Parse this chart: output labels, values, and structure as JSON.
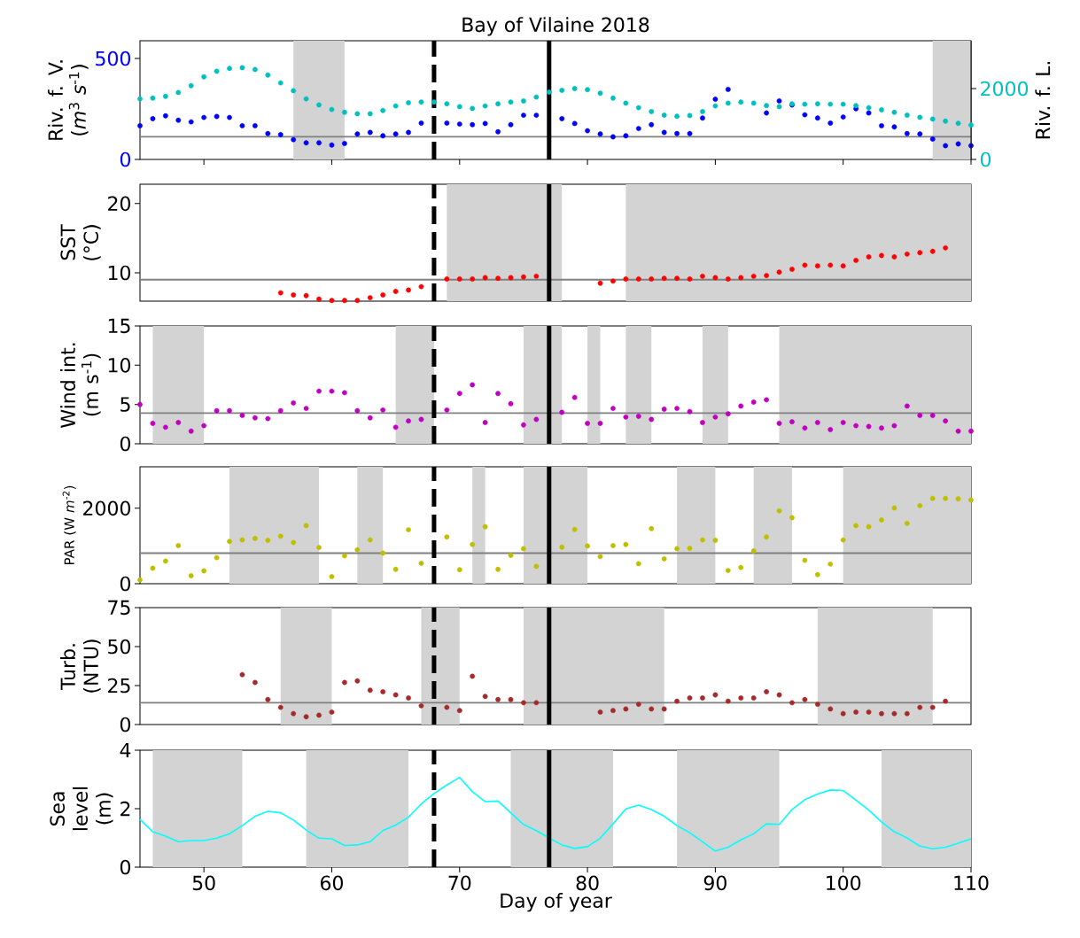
{
  "chart_data": [
    {
      "type": "scatter",
      "title": "Bay of Vilaine 2018",
      "ylabel": "Riv. f. V. (*m*$^{3}$ *s*$^{-1}$)",
      "y2label": "Riv. f. L.",
      "marker": "circle",
      "tick_labels": "y",
      "x": [
        45,
        46,
        47,
        48,
        49,
        50,
        51,
        52,
        53,
        54,
        55,
        56,
        57,
        58,
        59,
        60,
        61,
        62,
        63,
        64,
        65,
        66,
        67,
        68,
        69,
        70,
        71,
        72,
        73,
        74,
        75,
        76,
        77,
        78,
        79,
        80,
        81,
        82,
        83,
        84,
        85,
        86,
        87,
        88,
        89,
        90,
        91,
        92,
        93,
        94,
        95,
        96,
        97,
        98,
        99,
        100,
        101,
        102,
        103,
        104,
        105,
        106,
        107,
        108,
        109,
        110
      ],
      "series": [
        {
          "color": "#0000ff",
          "axis": "y",
          "values": [
            167,
            202,
            216,
            194,
            186,
            208,
            213,
            208,
            167,
            167,
            128,
            123,
            98,
            82,
            82,
            71,
            79,
            126,
            134,
            117,
            126,
            134,
            180,
            null,
            180,
            175,
            172,
            178,
            137,
            172,
            219,
            219,
            null,
            202,
            178,
            142,
            126,
            112,
            117,
            153,
            172,
            134,
            128,
            128,
            205,
            298,
            347,
            null,
            null,
            230,
            290,
            270,
            221,
            205,
            180,
            210,
            251,
            230,
            167,
            161,
            128,
            126,
            101,
            68,
            77,
            68
          ]
        },
        {
          "color": "#00bfbf",
          "axis": "y2",
          "values": [
            1710,
            1730,
            1780,
            1890,
            2080,
            2330,
            2490,
            2570,
            2590,
            2540,
            2380,
            2160,
            1940,
            1710,
            1540,
            1410,
            1330,
            1290,
            1290,
            1380,
            1510,
            1600,
            1620,
            1620,
            1570,
            1490,
            1440,
            1510,
            1570,
            1620,
            1650,
            1760,
            1900,
            1950,
            2000,
            1970,
            1870,
            1730,
            1590,
            1460,
            1350,
            1250,
            1220,
            1240,
            1350,
            1510,
            1590,
            1620,
            1590,
            1520,
            1490,
            1570,
            1560,
            1570,
            1560,
            1560,
            1520,
            1460,
            1400,
            1330,
            1250,
            1190,
            1140,
            1080,
            1020,
            970
          ]
        }
      ],
      "xlim": [
        45,
        110
      ],
      "xticks": [
        50,
        60,
        70,
        80,
        90,
        100,
        110
      ],
      "ylim": [
        0,
        588
      ],
      "yticks": [
        0,
        500
      ],
      "y2lim": [
        0,
        3350
      ],
      "y2ticks": [
        0,
        2000
      ],
      "ref_lines": [
        {
          "axis": "y",
          "value": 112,
          "color": "#808080"
        },
        {
          "axis": "x",
          "value": 68,
          "color": "#000000",
          "line_style": "dashed"
        },
        {
          "axis": "x",
          "value": 77,
          "color": "#000000",
          "line_style": "solid"
        }
      ],
      "bands": [
        {
          "axis": "x",
          "from": 57,
          "to": 61,
          "color": "#d3d3d3"
        },
        {
          "axis": "x",
          "from": 107,
          "to": 110,
          "color": "#d3d3d3"
        }
      ]
    },
    {
      "type": "scatter",
      "ylabel": "SST (°C)",
      "marker": "circle",
      "tick_labels": "y",
      "x": [
        56,
        57,
        58,
        59,
        60,
        61,
        62,
        63,
        64,
        65,
        66,
        67,
        68,
        69,
        70,
        71,
        72,
        73,
        74,
        75,
        76,
        77,
        78,
        79,
        80,
        81,
        82,
        83,
        84,
        85,
        86,
        87,
        88,
        89,
        90,
        91,
        92,
        93,
        94,
        95,
        96,
        97,
        98,
        99,
        100,
        101,
        102,
        103,
        104,
        105,
        106,
        107,
        108
      ],
      "series": [
        {
          "color": "#ff0000",
          "values": [
            7.1,
            6.8,
            6.7,
            6.2,
            6.0,
            6.0,
            6.0,
            6.4,
            6.8,
            7.3,
            7.5,
            8.0,
            null,
            9.1,
            9.1,
            9.1,
            9.3,
            9.2,
            9.3,
            9.4,
            9.5,
            null,
            null,
            null,
            null,
            8.5,
            8.8,
            9.1,
            9.1,
            9.1,
            9.2,
            9.2,
            9.1,
            9.5,
            9.3,
            9.1,
            9.3,
            9.5,
            9.6,
            10.1,
            10.5,
            11.1,
            11.0,
            11.1,
            11.0,
            11.8,
            12.3,
            12.5,
            12.3,
            12.7,
            12.9,
            13.1,
            13.6
          ]
        }
      ],
      "xlim": [
        45,
        110
      ],
      "ylim": [
        5.9,
        22.8
      ],
      "yticks": [
        10,
        20
      ],
      "ref_lines": [
        {
          "axis": "y",
          "value": 9.0,
          "color": "#808080"
        },
        {
          "axis": "x",
          "value": 68,
          "color": "#000000",
          "line_style": "dashed"
        },
        {
          "axis": "x",
          "value": 77,
          "color": "#000000",
          "line_style": "solid"
        }
      ],
      "bands": [
        {
          "axis": "x",
          "from": 69,
          "to": 78,
          "color": "#d3d3d3"
        },
        {
          "axis": "x",
          "from": 83,
          "to": 110,
          "color": "#d3d3d3"
        }
      ]
    },
    {
      "type": "scatter",
      "ylabel": "Wind int. (m s$^{-1}$)",
      "marker": "circle",
      "tick_labels": "y",
      "x": [
        45,
        46,
        47,
        48,
        49,
        50,
        51,
        52,
        53,
        54,
        55,
        56,
        57,
        58,
        59,
        60,
        61,
        62,
        63,
        64,
        65,
        66,
        67,
        68,
        69,
        70,
        71,
        72,
        73,
        74,
        75,
        76,
        77,
        78,
        79,
        80,
        81,
        82,
        83,
        84,
        85,
        86,
        87,
        88,
        89,
        90,
        91,
        92,
        93,
        94,
        95,
        96,
        97,
        98,
        99,
        100,
        101,
        102,
        103,
        104,
        105,
        106,
        107,
        108,
        109,
        110
      ],
      "series": [
        {
          "color": "#bf00bf",
          "values": [
            5.0,
            2.6,
            2.1,
            2.7,
            1.6,
            2.3,
            4.2,
            4.2,
            3.6,
            3.3,
            3.2,
            4.2,
            5.2,
            4.5,
            6.7,
            6.7,
            6.5,
            4.2,
            3.3,
            4.3,
            2.1,
            2.9,
            3.1,
            null,
            4.3,
            6.4,
            7.5,
            2.7,
            6.4,
            5.1,
            2.4,
            3.1,
            null,
            4.0,
            5.9,
            2.6,
            2.6,
            4.5,
            3.4,
            3.5,
            3.1,
            4.4,
            4.5,
            4.1,
            2.7,
            3.4,
            3.8,
            4.8,
            5.3,
            5.6,
            2.6,
            2.8,
            2.0,
            2.7,
            1.8,
            2.7,
            2.3,
            2.2,
            2.0,
            2.3,
            4.8,
            3.6,
            3.6,
            2.9,
            1.6,
            1.6
          ]
        }
      ],
      "xlim": [
        45,
        110
      ],
      "ylim": [
        0,
        15
      ],
      "yticks": [
        0,
        5,
        10,
        15
      ],
      "ref_lines": [
        {
          "axis": "y",
          "value": 3.9,
          "color": "#808080"
        },
        {
          "axis": "x",
          "value": 68,
          "color": "#000000",
          "line_style": "dashed"
        },
        {
          "axis": "x",
          "value": 77,
          "color": "#000000",
          "line_style": "solid"
        }
      ],
      "bands": [
        {
          "axis": "x",
          "from": 46,
          "to": 50,
          "color": "#d3d3d3"
        },
        {
          "axis": "x",
          "from": 65,
          "to": 68,
          "color": "#d3d3d3"
        },
        {
          "axis": "x",
          "from": 75,
          "to": 78,
          "color": "#d3d3d3"
        },
        {
          "axis": "x",
          "from": 80,
          "to": 81,
          "color": "#d3d3d3"
        },
        {
          "axis": "x",
          "from": 83,
          "to": 85,
          "color": "#d3d3d3"
        },
        {
          "axis": "x",
          "from": 89,
          "to": 91,
          "color": "#d3d3d3"
        },
        {
          "axis": "x",
          "from": 95,
          "to": 110,
          "color": "#d3d3d3"
        }
      ]
    },
    {
      "type": "scatter",
      "ylabel": "PAR (W *m*$^{-2}$)",
      "marker": "circle",
      "tick_labels": "y",
      "x": [
        45,
        46,
        47,
        48,
        49,
        50,
        51,
        52,
        53,
        54,
        55,
        56,
        57,
        58,
        59,
        60,
        61,
        62,
        63,
        64,
        65,
        66,
        67,
        68,
        69,
        70,
        71,
        72,
        73,
        74,
        75,
        76,
        77,
        78,
        79,
        80,
        81,
        82,
        83,
        84,
        85,
        86,
        87,
        88,
        89,
        90,
        91,
        92,
        93,
        94,
        95,
        96,
        97,
        98,
        99,
        100,
        101,
        102,
        103,
        104,
        105,
        106,
        107,
        108,
        109,
        110
      ],
      "series": [
        {
          "color": "#bfbf00",
          "values": [
            100,
            410,
            600,
            1010,
            210,
            340,
            690,
            1120,
            1160,
            1200,
            1150,
            1260,
            1090,
            1540,
            960,
            190,
            740,
            900,
            1160,
            810,
            380,
            1430,
            540,
            null,
            1240,
            370,
            1040,
            1510,
            380,
            750,
            930,
            460,
            null,
            970,
            1440,
            1000,
            720,
            1010,
            1040,
            530,
            1460,
            660,
            930,
            940,
            1160,
            1150,
            350,
            430,
            870,
            1240,
            1930,
            1750,
            620,
            240,
            520,
            1160,
            1540,
            1510,
            1690,
            2010,
            1600,
            2070,
            2260,
            2260,
            2250,
            2220
          ]
        }
      ],
      "xlim": [
        45,
        110
      ],
      "ylim": [
        0,
        3100
      ],
      "yticks": [
        0,
        2000
      ],
      "ref_lines": [
        {
          "axis": "y",
          "value": 810,
          "color": "#808080"
        },
        {
          "axis": "x",
          "value": 68,
          "color": "#000000",
          "line_style": "dashed"
        },
        {
          "axis": "x",
          "value": 77,
          "color": "#000000",
          "line_style": "solid"
        }
      ],
      "bands": [
        {
          "axis": "x",
          "from": 52,
          "to": 59,
          "color": "#d3d3d3"
        },
        {
          "axis": "x",
          "from": 62,
          "to": 64,
          "color": "#d3d3d3"
        },
        {
          "axis": "x",
          "from": 71,
          "to": 72,
          "color": "#d3d3d3"
        },
        {
          "axis": "x",
          "from": 75,
          "to": 80,
          "color": "#d3d3d3"
        },
        {
          "axis": "x",
          "from": 87,
          "to": 90,
          "color": "#d3d3d3"
        },
        {
          "axis": "x",
          "from": 93,
          "to": 96,
          "color": "#d3d3d3"
        },
        {
          "axis": "x",
          "from": 100,
          "to": 110,
          "color": "#d3d3d3"
        }
      ]
    },
    {
      "type": "scatter",
      "ylabel": "Turb. (NTU)",
      "marker": "circle",
      "tick_labels": "y",
      "x": [
        53,
        54,
        55,
        56,
        57,
        58,
        59,
        60,
        61,
        62,
        63,
        64,
        65,
        66,
        67,
        68,
        69,
        70,
        71,
        72,
        73,
        74,
        75,
        76,
        77,
        78,
        79,
        80,
        81,
        82,
        83,
        84,
        85,
        86,
        87,
        88,
        89,
        90,
        91,
        92,
        93,
        94,
        95,
        96,
        97,
        98,
        99,
        100,
        101,
        102,
        103,
        104,
        105,
        106,
        107,
        108
      ],
      "series": [
        {
          "color": "#a52a2a",
          "values": [
            32,
            27,
            16,
            11,
            7,
            5,
            6,
            8,
            27,
            28,
            22,
            21,
            19,
            17,
            12,
            null,
            11,
            9,
            31,
            18,
            16,
            16,
            14,
            14,
            null,
            null,
            null,
            null,
            8,
            9,
            10,
            13,
            10,
            10,
            15,
            17,
            17,
            19,
            15,
            17,
            17,
            21,
            19,
            14,
            16,
            13,
            10,
            7,
            8,
            8,
            7,
            7,
            7,
            11,
            11,
            15
          ]
        }
      ],
      "xlim": [
        45,
        110
      ],
      "ylim": [
        0,
        75
      ],
      "yticks": [
        0,
        25,
        50,
        75
      ],
      "ref_lines": [
        {
          "axis": "y",
          "value": 14,
          "color": "#808080"
        },
        {
          "axis": "x",
          "value": 68,
          "color": "#000000",
          "line_style": "dashed"
        },
        {
          "axis": "x",
          "value": 77,
          "color": "#000000",
          "line_style": "solid"
        }
      ],
      "bands": [
        {
          "axis": "x",
          "from": 56,
          "to": 60,
          "color": "#d3d3d3"
        },
        {
          "axis": "x",
          "from": 67,
          "to": 70,
          "color": "#d3d3d3"
        },
        {
          "axis": "x",
          "from": 75,
          "to": 86,
          "color": "#d3d3d3"
        },
        {
          "axis": "x",
          "from": 98,
          "to": 107,
          "color": "#d3d3d3"
        }
      ]
    },
    {
      "type": "line",
      "ylabel": "Sea level (m)",
      "xlabel": "Day of year",
      "x": [
        45,
        46,
        47,
        48,
        49,
        50,
        51,
        52,
        53,
        54,
        55,
        56,
        57,
        58,
        59,
        60,
        61,
        62,
        63,
        64,
        65,
        66,
        67,
        68,
        69,
        70,
        71,
        72,
        73,
        74,
        75,
        76,
        77,
        78,
        79,
        80,
        81,
        82,
        83,
        84,
        85,
        86,
        87,
        88,
        89,
        90,
        91,
        92,
        93,
        94,
        95,
        96,
        97,
        98,
        99,
        100,
        101,
        102,
        103,
        104,
        105,
        106,
        107,
        108,
        109,
        110
      ],
      "series": [
        {
          "color": "#00ffff",
          "values": [
            1.63,
            1.21,
            1.06,
            0.87,
            0.91,
            0.91,
            0.99,
            1.14,
            1.42,
            1.74,
            1.91,
            1.86,
            1.61,
            1.27,
            0.99,
            0.97,
            0.74,
            0.76,
            0.87,
            1.25,
            1.44,
            1.71,
            2.16,
            2.52,
            2.81,
            3.07,
            2.58,
            2.24,
            2.26,
            1.86,
            1.46,
            1.25,
            1.0,
            0.76,
            0.64,
            0.7,
            0.99,
            1.48,
            1.99,
            2.12,
            1.97,
            1.74,
            1.42,
            1.18,
            0.87,
            0.55,
            0.68,
            0.93,
            1.14,
            1.48,
            1.46,
            1.97,
            2.31,
            2.5,
            2.64,
            2.62,
            2.29,
            1.95,
            1.55,
            1.21,
            1.0,
            0.72,
            0.63,
            0.68,
            0.82,
            0.97
          ]
        }
      ],
      "xlim": [
        45,
        110
      ],
      "xticks": [
        50,
        60,
        70,
        80,
        90,
        100,
        110
      ],
      "ylim": [
        0,
        4
      ],
      "yticks": [
        0,
        2,
        4
      ],
      "ref_lines": [
        {
          "axis": "x",
          "value": 68,
          "color": "#000000",
          "line_style": "dashed"
        },
        {
          "axis": "x",
          "value": 77,
          "color": "#000000",
          "line_style": "solid"
        }
      ],
      "bands": [
        {
          "axis": "x",
          "from": 46,
          "to": 53,
          "color": "#d3d3d3"
        },
        {
          "axis": "x",
          "from": 58,
          "to": 66,
          "color": "#d3d3d3"
        },
        {
          "axis": "x",
          "from": 74,
          "to": 82,
          "color": "#d3d3d3"
        },
        {
          "axis": "x",
          "from": 87,
          "to": 95,
          "color": "#d3d3d3"
        },
        {
          "axis": "x",
          "from": 103,
          "to": 110,
          "color": "#d3d3d3"
        }
      ]
    }
  ]
}
